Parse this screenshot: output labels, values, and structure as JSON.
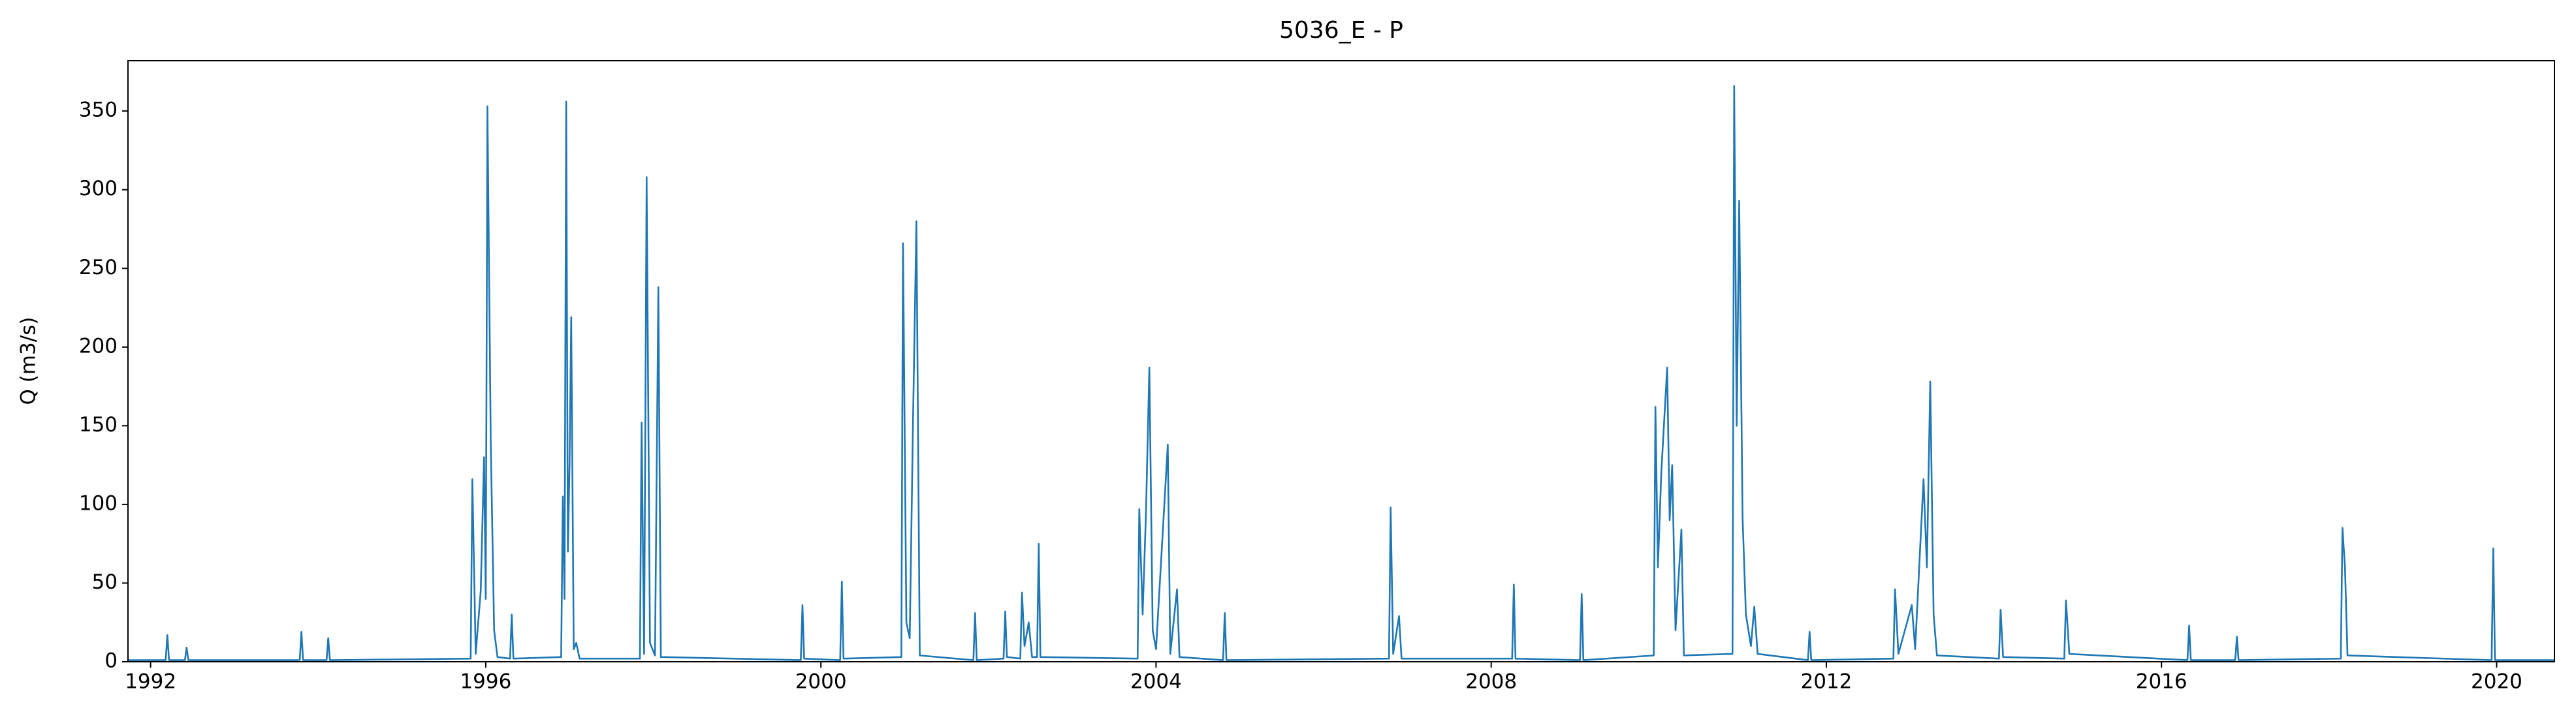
{
  "chart_data": {
    "type": "line",
    "title": "5036_E - P",
    "y_label": "Q (m3/s)",
    "color": "#1f77b4",
    "x": [
      1991.73,
      1992.18,
      1992.2,
      1992.22,
      1992.41,
      1992.43,
      1992.45,
      1993.78,
      1993.8,
      1993.82,
      1994.1,
      1994.12,
      1994.14,
      1995.82,
      1995.84,
      1995.88,
      1995.94,
      1995.98,
      1996.0,
      1996.02,
      1996.06,
      1996.1,
      1996.14,
      1996.29,
      1996.31,
      1996.33,
      1996.9,
      1996.92,
      1996.94,
      1996.96,
      1996.98,
      1997.0,
      1997.02,
      1997.05,
      1997.08,
      1997.12,
      1997.84,
      1997.86,
      1997.89,
      1997.92,
      1997.96,
      1998.02,
      1998.06,
      1998.09,
      1999.76,
      1999.78,
      1999.8,
      2000.23,
      2000.25,
      2000.27,
      2000.96,
      2000.98,
      2001.02,
      2001.06,
      2001.1,
      2001.14,
      2001.18,
      2001.82,
      2001.84,
      2001.86,
      2002.18,
      2002.2,
      2002.22,
      2002.38,
      2002.4,
      2002.43,
      2002.48,
      2002.52,
      2002.58,
      2002.6,
      2002.62,
      2003.78,
      2003.8,
      2003.84,
      2003.88,
      2003.92,
      2003.96,
      2004.0,
      2004.14,
      2004.17,
      2004.25,
      2004.28,
      2004.8,
      2004.82,
      2004.84,
      2006.78,
      2006.8,
      2006.83,
      2006.9,
      2006.93,
      2008.25,
      2008.27,
      2008.29,
      2009.06,
      2009.08,
      2009.1,
      2009.94,
      2009.96,
      2009.99,
      2010.03,
      2010.1,
      2010.13,
      2010.16,
      2010.2,
      2010.27,
      2010.3,
      2010.88,
      2010.9,
      2010.93,
      2010.96,
      2011.0,
      2011.04,
      2011.1,
      2011.14,
      2011.18,
      2011.78,
      2011.8,
      2011.82,
      2012.8,
      2012.82,
      2012.86,
      2013.02,
      2013.06,
      2013.16,
      2013.2,
      2013.24,
      2013.28,
      2013.32,
      2014.06,
      2014.08,
      2014.11,
      2014.84,
      2014.86,
      2014.9,
      2016.31,
      2016.33,
      2016.35,
      2016.88,
      2016.9,
      2016.92,
      2018.14,
      2018.16,
      2018.19,
      2018.22,
      2019.94,
      2019.96,
      2019.98,
      2020.69
    ],
    "values": [
      1,
      1,
      17,
      1,
      1,
      9,
      1,
      1,
      19,
      1,
      1,
      15,
      1,
      2,
      116,
      5,
      45,
      130,
      40,
      353,
      138,
      20,
      3,
      2,
      30,
      2,
      3,
      105,
      40,
      356,
      70,
      125,
      219,
      8,
      12,
      2,
      2,
      152,
      5,
      308,
      12,
      4,
      238,
      3,
      1,
      36,
      2,
      1,
      51,
      2,
      3,
      266,
      25,
      15,
      155,
      280,
      4,
      1,
      31,
      1,
      2,
      32,
      3,
      2,
      44,
      10,
      25,
      3,
      3,
      75,
      3,
      2,
      97,
      30,
      95,
      187,
      20,
      8,
      138,
      5,
      46,
      3,
      1,
      31,
      1,
      2,
      98,
      5,
      29,
      2,
      2,
      49,
      2,
      1,
      43,
      1,
      4,
      162,
      60,
      120,
      187,
      90,
      125,
      20,
      84,
      4,
      5,
      366,
      150,
      293,
      92,
      30,
      10,
      35,
      5,
      1,
      19,
      1,
      2,
      46,
      5,
      36,
      8,
      116,
      60,
      178,
      30,
      4,
      2,
      33,
      3,
      2,
      39,
      5,
      1,
      23,
      1,
      1,
      16,
      1,
      2,
      85,
      60,
      4,
      1,
      72,
      1,
      1
    ],
    "xlim": [
      1991.73,
      2020.69
    ],
    "xticks": [
      1992,
      1996,
      2000,
      2004,
      2008,
      2012,
      2016,
      2020
    ],
    "ylim": [
      0,
      382
    ],
    "yticks": [
      0,
      50,
      100,
      150,
      200,
      250,
      300,
      350
    ]
  }
}
